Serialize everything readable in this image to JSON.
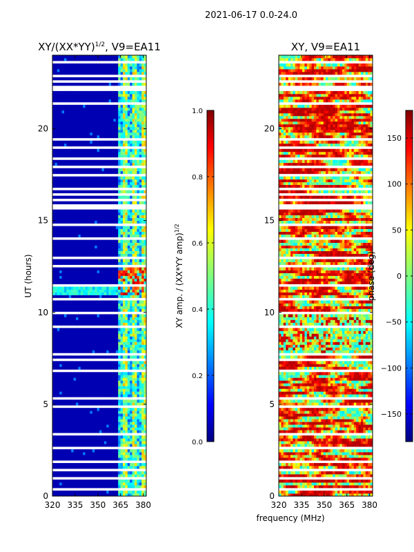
{
  "page_title": "2021-06-17 0.0-24.0",
  "shared_xlabel": "frequency (MHz)",
  "chart_data": [
    {
      "type": "heatmap",
      "title": "XY/(XX*YY)^1/2, V9=EA11",
      "title_main": "XY/(XX*YY)",
      "title_exponent": "1/2",
      "title_suffix": ", V9=EA11",
      "xlabel": "",
      "ylabel": "UT (hours)",
      "xlim": [
        320,
        382
      ],
      "ylim": [
        0,
        24
      ],
      "xticks": [
        320,
        335,
        350,
        365,
        380
      ],
      "yticks": [
        0,
        5,
        10,
        15,
        20
      ],
      "colorbar": {
        "label": "XY amp. / (XX*YY amp)^1/2",
        "label_main": "XY amp. / (XX*YY amp)",
        "label_exponent": "1/2",
        "range": [
          0.0,
          1.0
        ],
        "ticks": [
          0.0,
          0.2,
          0.4,
          0.6,
          0.8,
          1.0
        ],
        "tick_labels": [
          "0.0",
          "0.2",
          "0.4",
          "0.6",
          "0.8",
          "1.0"
        ],
        "colormap": "jet"
      },
      "description_values": {
        "low_freq_band": [
          320,
          362
        ],
        "low_freq_level": 0.05,
        "high_freq_band": [
          362,
          382
        ],
        "high_freq_level_range": [
          0.15,
          0.95
        ],
        "bright_feature_hours": [
          10.9,
          12.6
        ]
      }
    },
    {
      "type": "heatmap",
      "title": "XY, V9=EA11",
      "xlabel": "frequency (MHz)",
      "ylabel": "",
      "xlim": [
        320,
        382
      ],
      "ylim": [
        0,
        24
      ],
      "xticks": [
        320,
        335,
        350,
        365,
        380
      ],
      "yticks": [
        0,
        5,
        10,
        15,
        20
      ],
      "colorbar": {
        "label": "phase (deg)",
        "range": [
          -180,
          180
        ],
        "ticks": [
          -150,
          -100,
          -50,
          0,
          50,
          100,
          150
        ],
        "tick_labels": [
          "−150",
          "−100",
          "−50",
          "0",
          "50",
          "100",
          "150"
        ],
        "colormap": "jet"
      }
    }
  ],
  "colors": {
    "jet": [
      "#00007f",
      "#0000ff",
      "#007fff",
      "#00ffff",
      "#7fff7f",
      "#ffff00",
      "#ff7f00",
      "#ff0000",
      "#7f0000"
    ]
  }
}
